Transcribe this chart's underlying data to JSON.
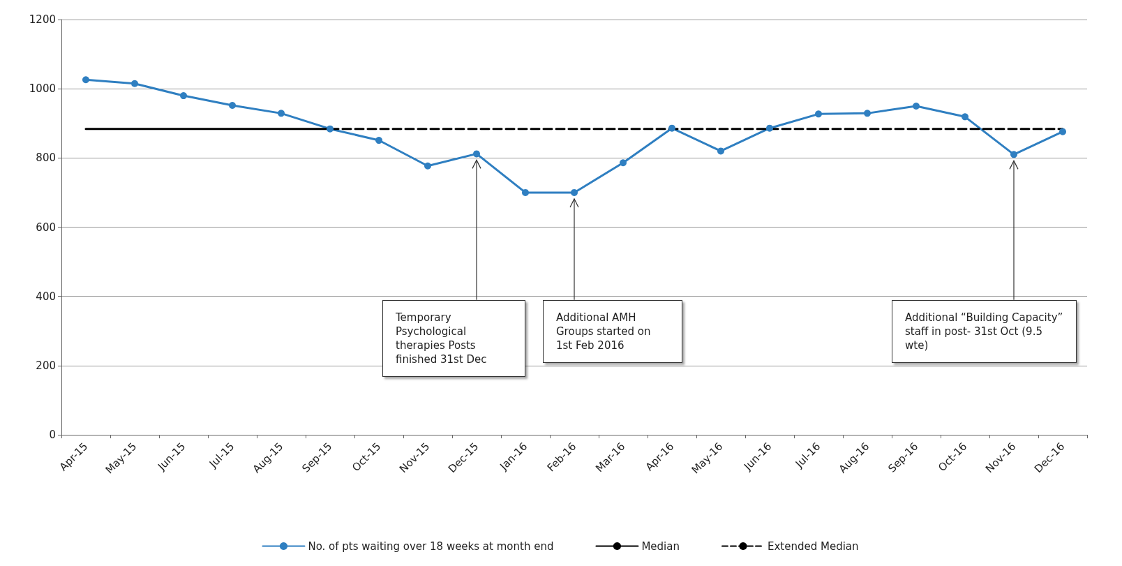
{
  "chart_data": {
    "type": "line",
    "categories": [
      "Apr-15",
      "May-15",
      "Jun-15",
      "Jul-15",
      "Aug-15",
      "Sep-15",
      "Oct-15",
      "Nov-15",
      "Dec-15",
      "Jan-16",
      "Feb-16",
      "Mar-16",
      "Apr-16",
      "May-16",
      "Jun-16",
      "Jul-16",
      "Aug-16",
      "Sep-16",
      "Oct-16",
      "Nov-16",
      "Dec-16"
    ],
    "series": [
      {
        "name": "No. of pts waiting over 18 weeks at month end",
        "color": "#2f7fc1",
        "marker": "circle",
        "line_style": "solid",
        "values": [
          1026,
          1015,
          980,
          952,
          929,
          884,
          851,
          777,
          812,
          700,
          700,
          786,
          886,
          820,
          886,
          927,
          929,
          950,
          919,
          810,
          876
        ]
      },
      {
        "name": "Median",
        "color": "#000000",
        "marker": "none",
        "line_style": "solid",
        "values": [
          884,
          884,
          884,
          884,
          884,
          884,
          null,
          null,
          null,
          null,
          null,
          null,
          null,
          null,
          null,
          null,
          null,
          null,
          null,
          null,
          null
        ]
      },
      {
        "name": "Extended Median",
        "color": "#000000",
        "marker": "none",
        "line_style": "dashed",
        "values": [
          null,
          null,
          null,
          null,
          null,
          884,
          884,
          884,
          884,
          884,
          884,
          884,
          884,
          884,
          884,
          884,
          884,
          884,
          884,
          884,
          884
        ]
      }
    ],
    "ylim": [
      0,
      1200
    ],
    "yticks": [
      0,
      200,
      400,
      600,
      800,
      1000,
      1200
    ],
    "grid": "y",
    "legend": "bottom",
    "annotations": [
      {
        "text": "Temporary Psychological therapies Posts finished 31st Dec",
        "x": "Dec-15",
        "y": 812
      },
      {
        "text": "Additional AMH Groups started on 1st Feb 2016",
        "x": "Feb-16",
        "y": 700
      },
      {
        "text": "Additional “Building Capacity” staff in post- 31st Oct (9.5 wte)",
        "x": "Nov-16",
        "y": 810
      }
    ]
  }
}
